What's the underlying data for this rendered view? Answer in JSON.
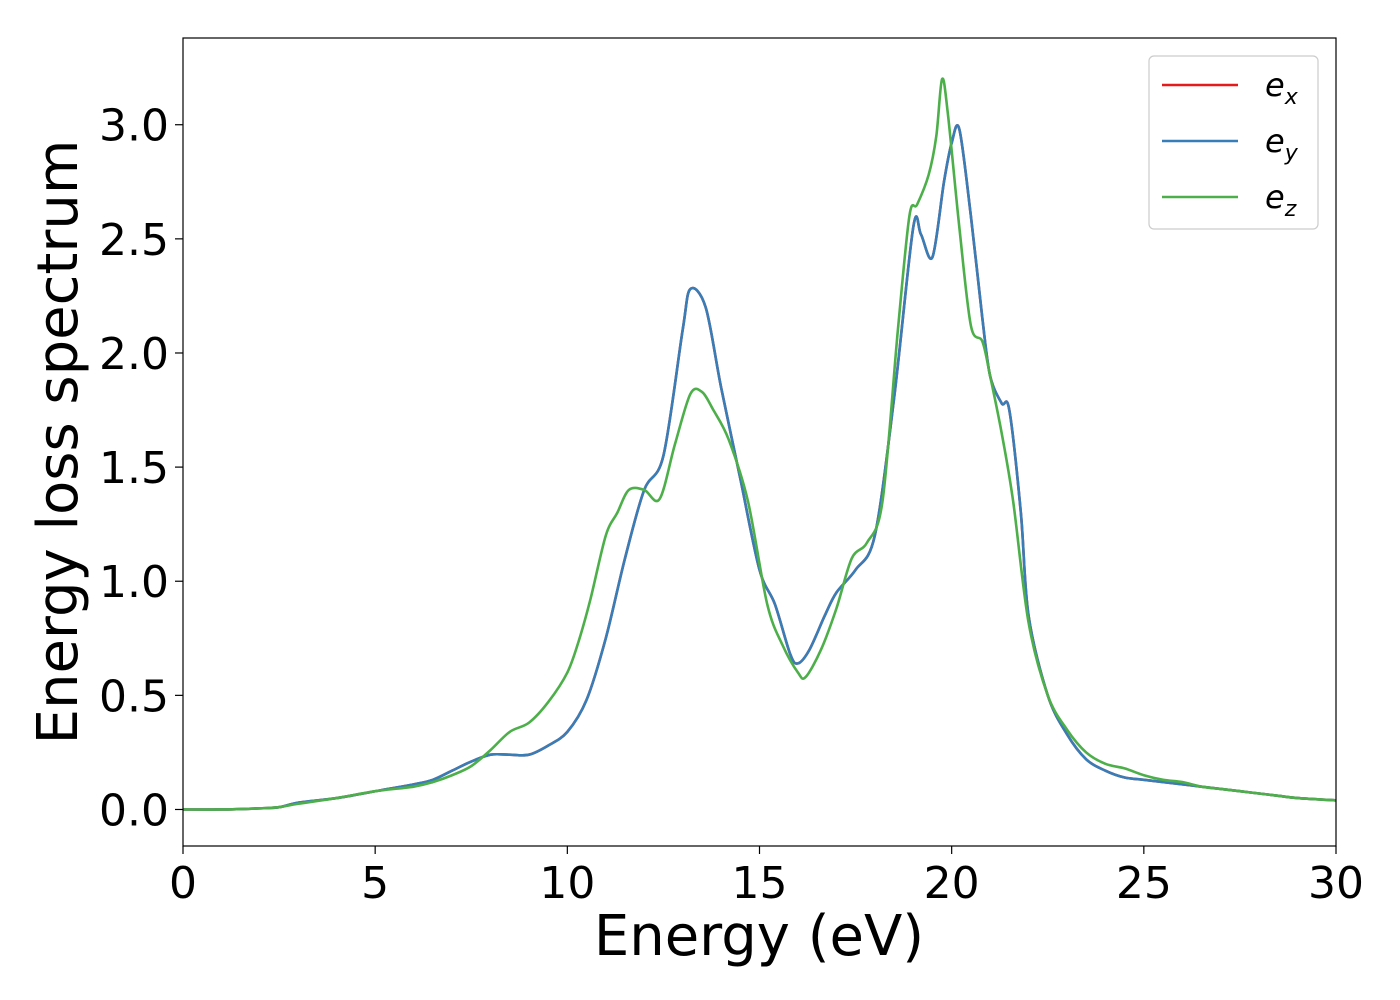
{
  "chart_data": {
    "type": "line",
    "xlabel": "Energy (eV)",
    "ylabel": "Energy loss spectrum",
    "xlim": [
      0,
      30
    ],
    "ylim": [
      -0.16,
      3.38
    ],
    "xticks": [
      0,
      5,
      10,
      15,
      20,
      25,
      30
    ],
    "xtick_labels": [
      "0",
      "5",
      "10",
      "15",
      "20",
      "25",
      "30"
    ],
    "yticks": [
      0.0,
      0.5,
      1.0,
      1.5,
      2.0,
      2.5,
      3.0
    ],
    "ytick_labels": [
      "0.0",
      "0.5",
      "1.0",
      "1.5",
      "2.0",
      "2.5",
      "3.0"
    ],
    "grid": false,
    "legend_position": "top-right",
    "series": [
      {
        "name": "e_x",
        "legend_main": "e",
        "legend_sub": "x",
        "color": "#e41a1c",
        "x": [
          0,
          1,
          2,
          2.5,
          3,
          4,
          5,
          6,
          6.5,
          7,
          7.5,
          8,
          8.5,
          9,
          9.5,
          10,
          10.5,
          11,
          11.5,
          12,
          12.5,
          13,
          13.2,
          13.6,
          14,
          14.5,
          15,
          15.4,
          15.8,
          16,
          16.3,
          16.7,
          17,
          17.5,
          18,
          18.5,
          19,
          19.2,
          19.5,
          19.8,
          20,
          20.2,
          20.5,
          20.8,
          21,
          21.3,
          21.5,
          21.8,
          22,
          22.5,
          23,
          23.5,
          24,
          24.5,
          25,
          25.5,
          26,
          26.5,
          27,
          27.5,
          28,
          28.5,
          29,
          30
        ],
        "y": [
          0,
          0,
          0.005,
          0.01,
          0.03,
          0.05,
          0.08,
          0.11,
          0.13,
          0.17,
          0.21,
          0.24,
          0.24,
          0.24,
          0.28,
          0.34,
          0.48,
          0.75,
          1.1,
          1.4,
          1.55,
          2.1,
          2.28,
          2.2,
          1.85,
          1.45,
          1.05,
          0.9,
          0.68,
          0.64,
          0.7,
          0.85,
          0.95,
          1.05,
          1.2,
          1.8,
          2.55,
          2.52,
          2.42,
          2.75,
          2.92,
          2.98,
          2.6,
          2.15,
          1.9,
          1.78,
          1.75,
          1.3,
          0.85,
          0.5,
          0.33,
          0.22,
          0.17,
          0.14,
          0.13,
          0.12,
          0.11,
          0.1,
          0.09,
          0.08,
          0.07,
          0.06,
          0.05,
          0.04
        ]
      },
      {
        "name": "e_y",
        "legend_main": "e",
        "legend_sub": "y",
        "color": "#377eb8",
        "x": [
          0,
          1,
          2,
          2.5,
          3,
          4,
          5,
          6,
          6.5,
          7,
          7.5,
          8,
          8.5,
          9,
          9.5,
          10,
          10.5,
          11,
          11.5,
          12,
          12.5,
          13,
          13.2,
          13.6,
          14,
          14.5,
          15,
          15.4,
          15.8,
          16,
          16.3,
          16.7,
          17,
          17.5,
          18,
          18.5,
          19,
          19.2,
          19.5,
          19.8,
          20,
          20.2,
          20.5,
          20.8,
          21,
          21.3,
          21.5,
          21.8,
          22,
          22.5,
          23,
          23.5,
          24,
          24.5,
          25,
          25.5,
          26,
          26.5,
          27,
          27.5,
          28,
          28.5,
          29,
          30
        ],
        "y": [
          0,
          0,
          0.005,
          0.01,
          0.03,
          0.05,
          0.08,
          0.11,
          0.13,
          0.17,
          0.21,
          0.24,
          0.24,
          0.24,
          0.28,
          0.34,
          0.48,
          0.75,
          1.1,
          1.4,
          1.55,
          2.1,
          2.28,
          2.2,
          1.85,
          1.45,
          1.05,
          0.9,
          0.68,
          0.64,
          0.7,
          0.85,
          0.95,
          1.05,
          1.2,
          1.8,
          2.55,
          2.52,
          2.42,
          2.75,
          2.92,
          2.98,
          2.6,
          2.15,
          1.9,
          1.78,
          1.75,
          1.3,
          0.85,
          0.5,
          0.33,
          0.22,
          0.17,
          0.14,
          0.13,
          0.12,
          0.11,
          0.1,
          0.09,
          0.08,
          0.07,
          0.06,
          0.05,
          0.04
        ]
      },
      {
        "name": "e_z",
        "legend_main": "e",
        "legend_sub": "z",
        "color": "#4daf4a",
        "x": [
          0,
          1,
          2,
          2.5,
          3,
          4,
          5,
          6,
          6.5,
          7,
          7.5,
          8,
          8.5,
          9,
          9.5,
          10,
          10.3,
          10.6,
          11,
          11.3,
          11.6,
          12,
          12.4,
          12.8,
          13.2,
          13.5,
          13.8,
          14.2,
          14.7,
          15.2,
          15.6,
          16,
          16.2,
          16.6,
          17,
          17.4,
          17.8,
          18.2,
          18.6,
          18.9,
          19.1,
          19.4,
          19.6,
          19.75,
          19.9,
          20.2,
          20.5,
          20.8,
          21,
          21.3,
          21.6,
          22,
          22.5,
          23,
          23.5,
          24,
          24.5,
          25,
          25.5,
          26,
          26.5,
          27,
          27.5,
          28,
          28.5,
          29,
          30
        ],
        "y": [
          0,
          0,
          0.005,
          0.01,
          0.025,
          0.05,
          0.08,
          0.1,
          0.12,
          0.15,
          0.19,
          0.26,
          0.34,
          0.38,
          0.47,
          0.6,
          0.74,
          0.92,
          1.2,
          1.3,
          1.4,
          1.4,
          1.36,
          1.6,
          1.82,
          1.83,
          1.75,
          1.62,
          1.35,
          0.9,
          0.72,
          0.6,
          0.58,
          0.7,
          0.88,
          1.1,
          1.17,
          1.35,
          2.1,
          2.6,
          2.65,
          2.78,
          2.95,
          3.2,
          3.05,
          2.55,
          2.12,
          2.05,
          1.9,
          1.65,
          1.35,
          0.82,
          0.5,
          0.35,
          0.25,
          0.2,
          0.18,
          0.15,
          0.13,
          0.12,
          0.1,
          0.09,
          0.08,
          0.07,
          0.06,
          0.05,
          0.04
        ]
      }
    ]
  }
}
